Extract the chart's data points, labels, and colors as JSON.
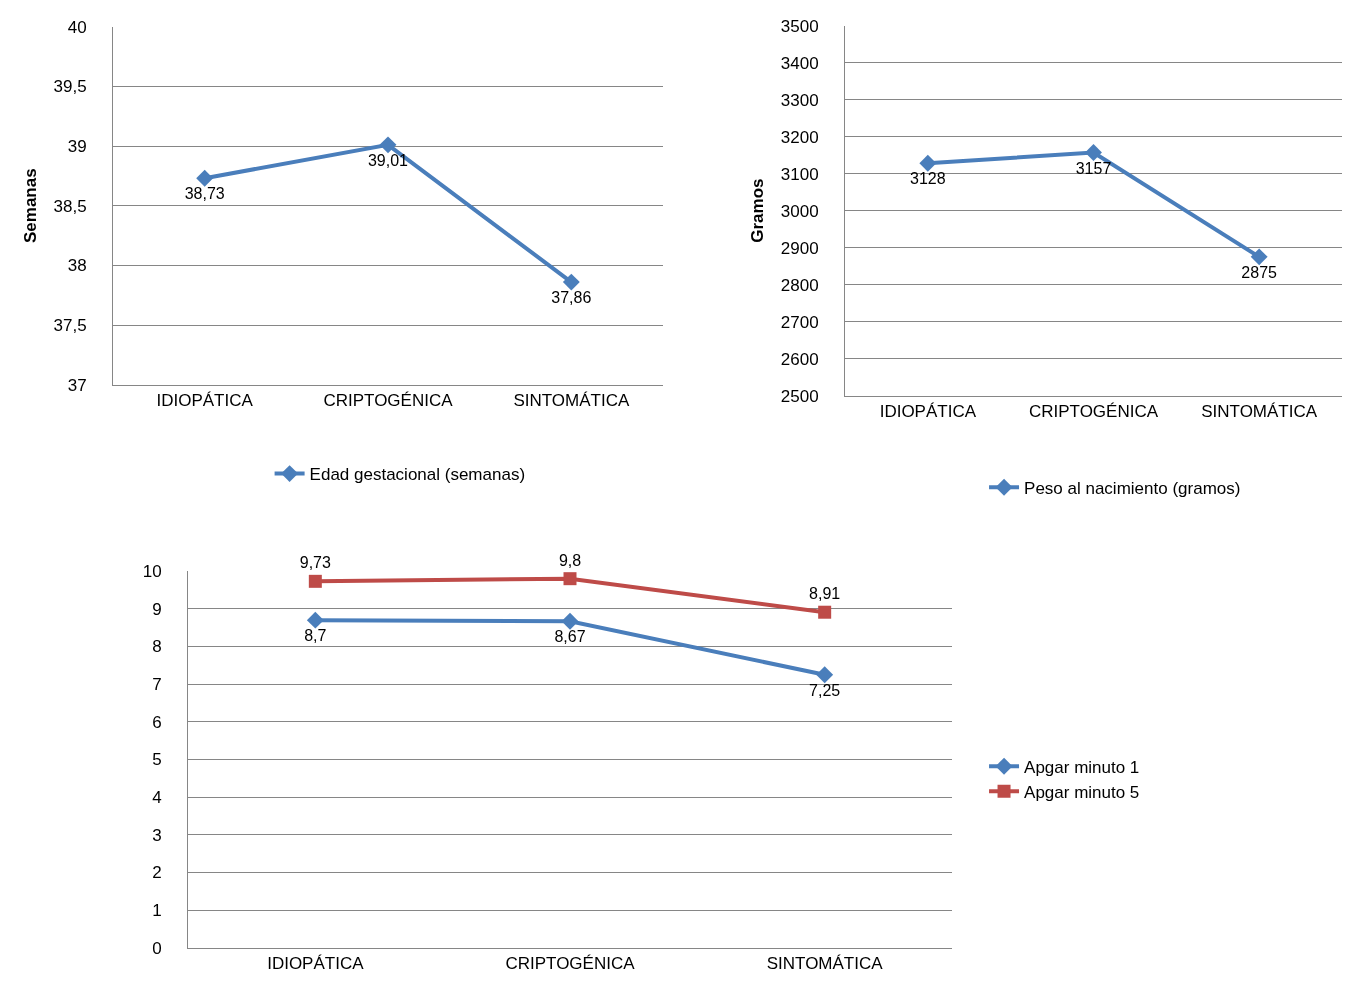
{
  "chart_data": [
    {
      "type": "line",
      "ylabel": "Semanas",
      "categories": [
        "IDIOPÁTICA",
        "CRIPTOGÉNICA",
        "SINTOMÁTICA"
      ],
      "ylim": [
        37,
        40
      ],
      "yticks": [
        37,
        {
          "value": 37.5,
          "label": "37,5"
        },
        38,
        {
          "value": 38.5,
          "label": "38,5"
        },
        39,
        {
          "value": 39.5,
          "label": "39,5"
        },
        40
      ],
      "grid": "y",
      "legend": "bottom",
      "marker": "diamond",
      "series": [
        {
          "name": "Edad gestacional (semanas)",
          "color": "#4a7ebb",
          "values": [
            38.73,
            39.01,
            37.86
          ],
          "value_labels": [
            "38,73",
            "39,01",
            "37,86"
          ]
        }
      ]
    },
    {
      "type": "line",
      "ylabel": "Gramos",
      "categories": [
        "IDIOPÁTICA",
        "CRIPTOGÉNICA",
        "SINTOMÁTICA"
      ],
      "ylim": [
        2500,
        3500
      ],
      "yticks": [
        2500,
        2600,
        2700,
        2800,
        2900,
        3000,
        3100,
        3200,
        3300,
        3400,
        3500
      ],
      "grid": "y",
      "legend": "bottom",
      "marker": "diamond",
      "series": [
        {
          "name": "Peso al nacimiento (gramos)",
          "color": "#4a7ebb",
          "values": [
            3128,
            3157,
            2875
          ],
          "value_labels": [
            "3128",
            "3157",
            "2875"
          ]
        }
      ]
    },
    {
      "type": "line",
      "categories": [
        "IDIOPÁTICA",
        "CRIPTOGÉNICA",
        "SINTOMÁTICA"
      ],
      "ylim": [
        0,
        10
      ],
      "yticks": [
        0,
        1,
        2,
        3,
        4,
        5,
        6,
        7,
        8,
        9,
        10
      ],
      "grid": "y",
      "legend": "right",
      "series": [
        {
          "name": "Apgar minuto 1",
          "color": "#4a7ebb",
          "marker": "diamond",
          "values": [
            8.7,
            8.67,
            7.25
          ],
          "value_labels": [
            "8,7",
            "8,67",
            "7,25"
          ]
        },
        {
          "name": "Apgar minuto 5",
          "color": "#be4b48",
          "marker": "square",
          "values": [
            9.73,
            9.8,
            8.91
          ],
          "value_labels": [
            "9,73",
            "9,8",
            "8,91"
          ]
        }
      ]
    }
  ]
}
